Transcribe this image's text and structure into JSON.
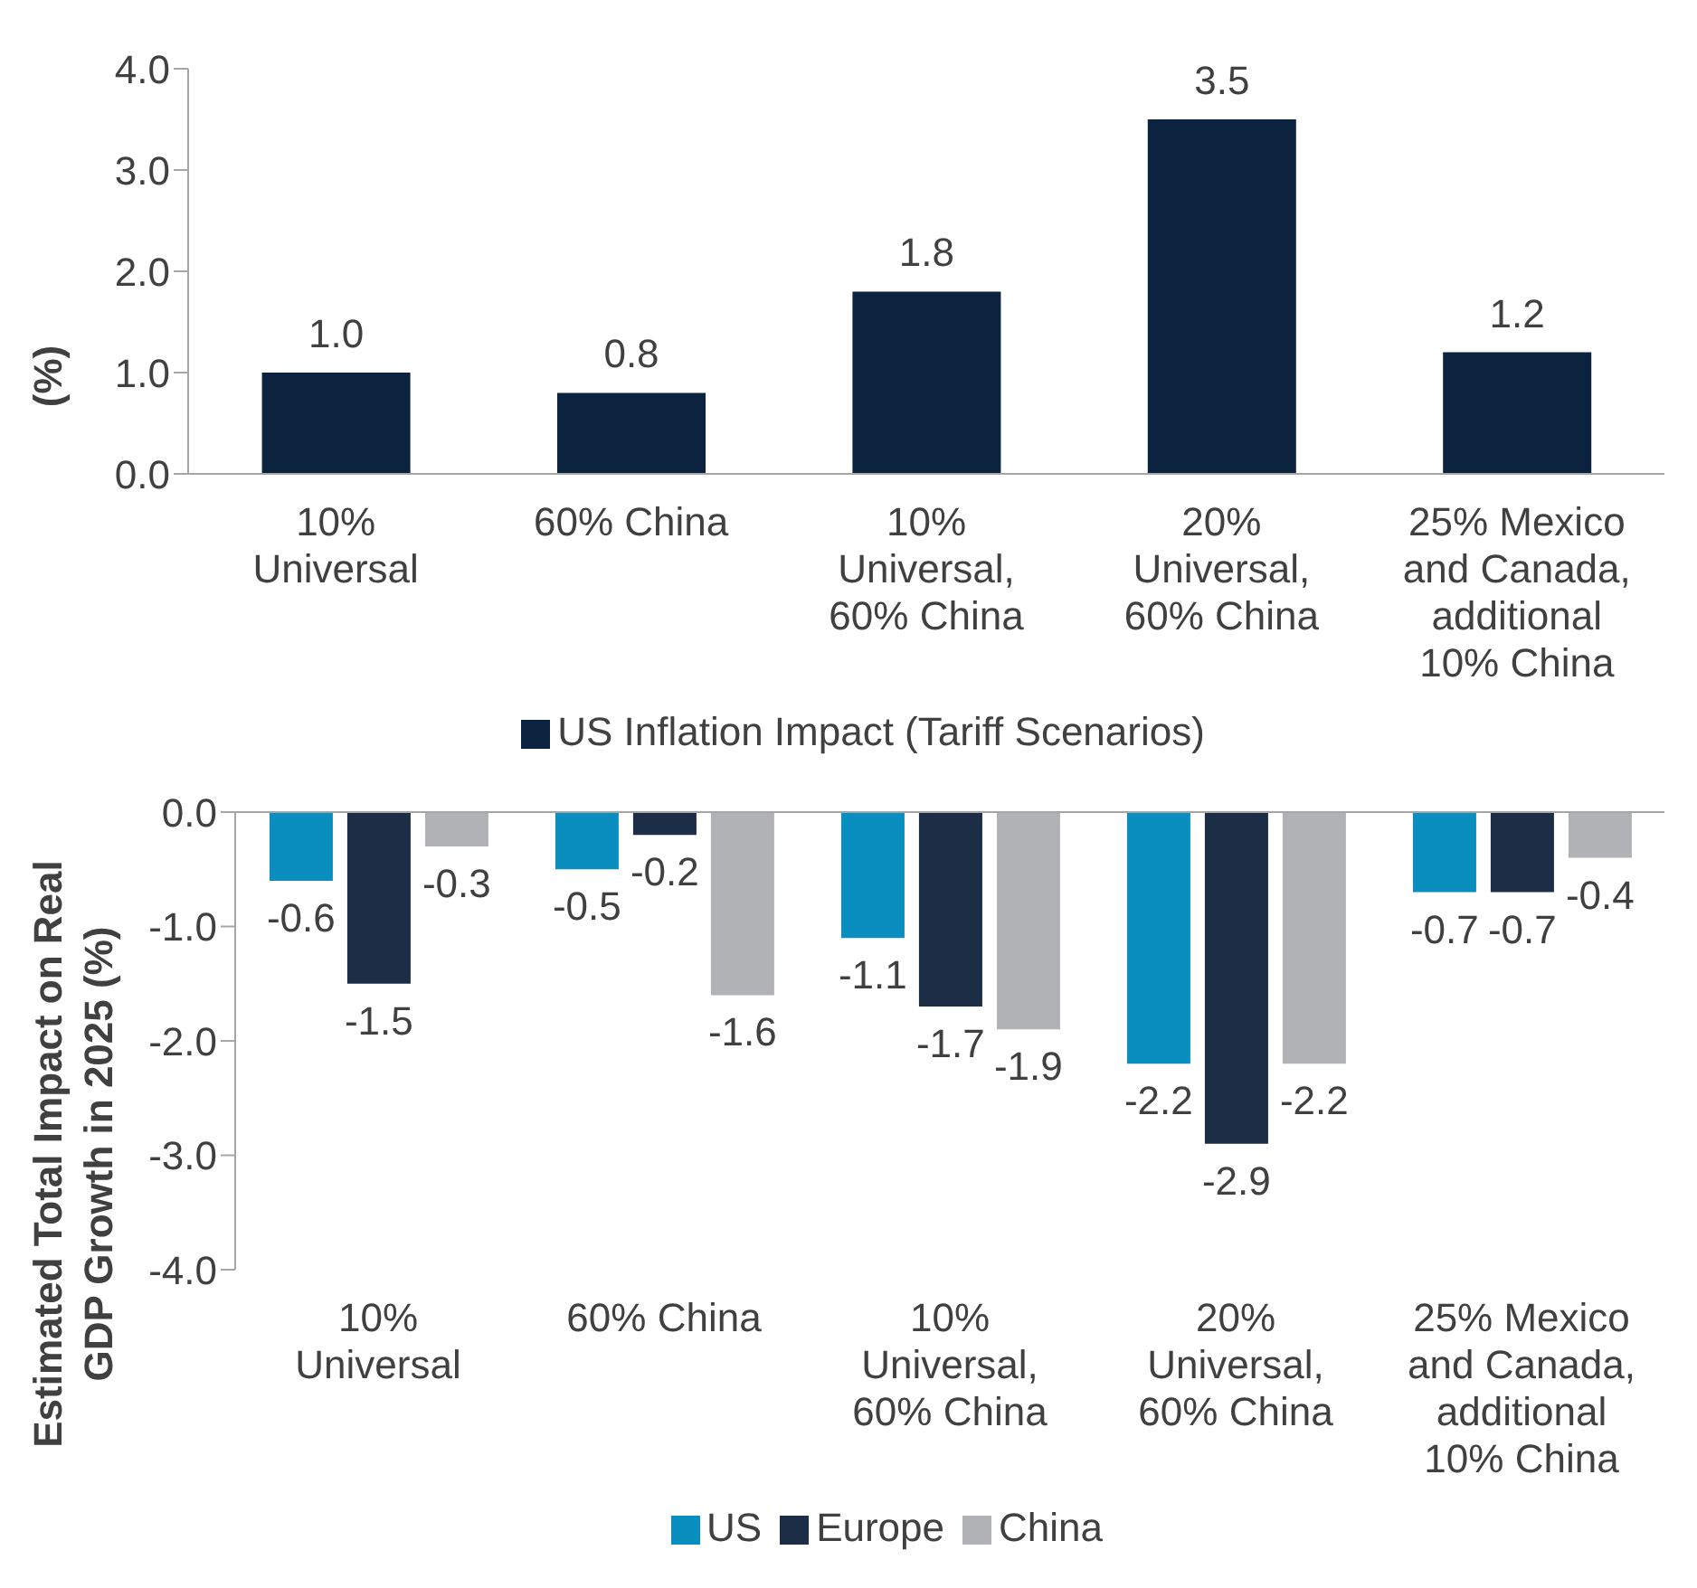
{
  "chart_data": [
    {
      "type": "bar",
      "ylabel": "(%)",
      "categories": [
        "10% Universal",
        "60% China",
        "10% Universal, 60% China",
        "20% Universal, 60% China",
        "25% Mexico and Canada, additional 10% China"
      ],
      "series": [
        {
          "name": "US Inflation Impact (Tariff Scenarios)",
          "color": "#0c2340",
          "values": [
            1.0,
            0.8,
            1.8,
            3.5,
            1.2
          ]
        }
      ],
      "ylim": [
        0,
        4
      ],
      "yticks": [
        {
          "value": 0,
          "label": "0.0"
        },
        {
          "value": 1,
          "label": "1.0"
        },
        {
          "value": 2,
          "label": "2.0"
        },
        {
          "value": 3,
          "label": "3.0"
        },
        {
          "value": 4,
          "label": "4.0"
        }
      ],
      "value_labels": [
        "1.0",
        "0.8",
        "1.8",
        "3.5",
        "1.2"
      ],
      "legend": "bottom",
      "grid": false
    },
    {
      "type": "bar",
      "ylabel": "Estimated Total Impact on Real GDP Growth in 2025 (%)",
      "categories": [
        "10% Universal",
        "60% China",
        "10% Universal, 60% China",
        "20% Universal, 60% China",
        "25% Mexico and Canada, additional 10% China"
      ],
      "series": [
        {
          "name": "US",
          "color": "#0a8ebf",
          "values": [
            -0.6,
            -0.5,
            -1.1,
            -2.2,
            -0.7
          ]
        },
        {
          "name": "Europe",
          "color": "#1c2e45",
          "values": [
            -1.5,
            -0.2,
            -1.7,
            -2.9,
            -0.7
          ]
        },
        {
          "name": "China",
          "color": "#b1b2b5",
          "values": [
            -0.3,
            -1.6,
            -1.9,
            -2.2,
            -0.4
          ]
        }
      ],
      "ylim": [
        -4,
        0
      ],
      "yticks": [
        {
          "value": -4,
          "label": "-4.0"
        },
        {
          "value": -3,
          "label": "-3.0"
        },
        {
          "value": -2,
          "label": "-2.0"
        },
        {
          "value": -1,
          "label": "-1.0"
        },
        {
          "value": 0,
          "label": "0.0"
        }
      ],
      "data_labels": true,
      "legend": "bottom",
      "grid": false
    }
  ]
}
